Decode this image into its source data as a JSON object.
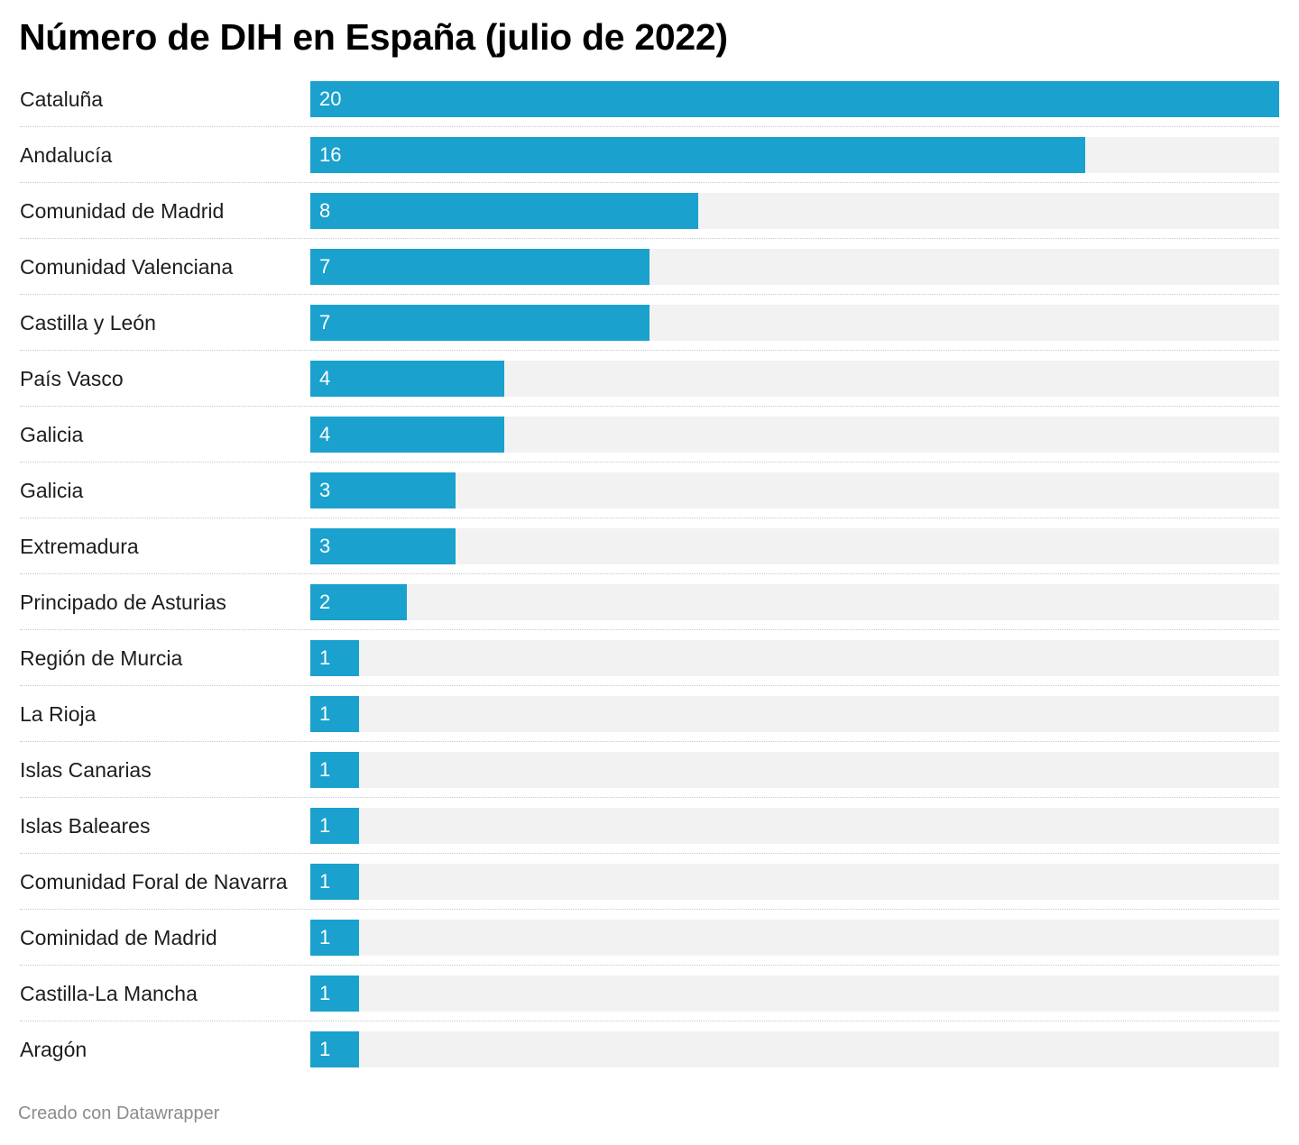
{
  "chart_data": {
    "type": "bar",
    "orientation": "horizontal",
    "title": "Número de DIH en España (julio de 2022)",
    "categories": [
      "Cataluña",
      "Andalucía",
      "Comunidad de Madrid",
      "Comunidad Valenciana",
      "Castilla y León",
      "País Vasco",
      "Galicia",
      "Galicia",
      "Extremadura",
      "Principado de Asturias",
      "Región de Murcia",
      "La Rioja",
      "Islas Canarias",
      "Islas Baleares",
      "Comunidad Foral de Navarra",
      "Cominidad de Madrid",
      "Castilla-La Mancha",
      "Aragón"
    ],
    "values": [
      20,
      16,
      8,
      7,
      7,
      4,
      4,
      3,
      3,
      2,
      1,
      1,
      1,
      1,
      1,
      1,
      1,
      1
    ],
    "xlim": [
      0,
      20
    ],
    "data_labels": true,
    "grid": false,
    "bar_color": "#1aa1cd",
    "track_color": "#f2f2f2"
  },
  "footer": "Creado con Datawrapper"
}
